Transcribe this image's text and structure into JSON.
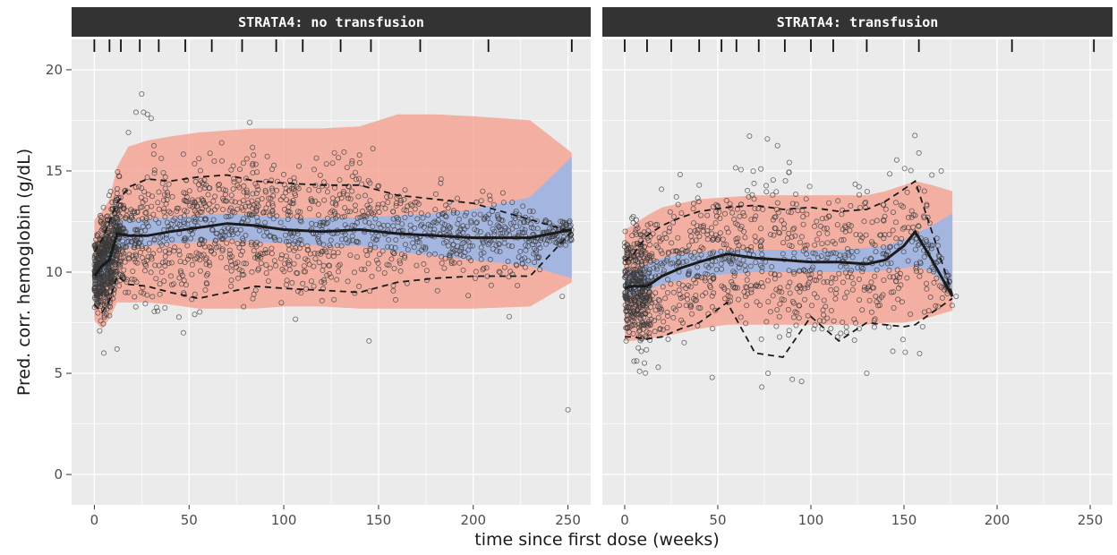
{
  "chart_data": {
    "type": "scatter",
    "xlabel": "time since first dose (weeks)",
    "ylabel": "Pred. corr. hemoglobin (g/dL)",
    "xlim": [
      -12,
      262
    ],
    "ylim": [
      -1.5,
      21.5
    ],
    "x_ticks": [
      0,
      50,
      100,
      150,
      200,
      250
    ],
    "y_ticks": [
      0,
      5,
      10,
      15,
      20
    ],
    "grid": true,
    "colors": {
      "panel_bg": "#ebebeb",
      "grid": "#ffffff",
      "strip_bg": "#333333",
      "pi_outer": "#f4a090",
      "pi_median": "#9bb6e6",
      "points": "#3a3a3a",
      "lines": "#1a1a1a"
    },
    "panels": [
      {
        "strip": "STRATA4: no transfusion",
        "rug_bins": [
          0,
          8,
          14,
          24,
          34,
          48,
          62,
          78,
          96,
          110,
          130,
          146,
          172,
          208,
          252
        ],
        "time": [
          0,
          4,
          8,
          12,
          18,
          28,
          40,
          55,
          70,
          85,
          100,
          120,
          140,
          160,
          180,
          200,
          230,
          252
        ],
        "observed": {
          "p05": [
            8.4,
            8.0,
            8.6,
            9.8,
            9.4,
            9.3,
            9.0,
            8.7,
            9.0,
            9.3,
            9.2,
            9.1,
            9.0,
            9.5,
            9.7,
            9.8,
            9.8,
            12.0
          ],
          "median": [
            9.8,
            10.3,
            10.6,
            11.9,
            11.8,
            11.8,
            12.0,
            12.2,
            12.4,
            12.3,
            12.1,
            12.0,
            12.1,
            11.9,
            11.8,
            11.7,
            11.7,
            12.1
          ],
          "p95": [
            11.0,
            11.6,
            12.5,
            13.4,
            14.2,
            14.6,
            14.5,
            14.7,
            14.8,
            14.5,
            14.4,
            14.3,
            14.3,
            13.8,
            13.6,
            13.4,
            12.6,
            12.0
          ]
        },
        "simulated_pi": {
          "p05_lo": [
            7.6,
            7.2,
            7.7,
            8.5,
            8.5,
            8.5,
            8.4,
            8.2,
            8.2,
            8.2,
            8.3,
            8.3,
            8.2,
            8.2,
            8.2,
            8.2,
            8.3,
            9.5
          ],
          "p95_hi": [
            12.6,
            13.0,
            13.6,
            15.2,
            16.2,
            16.5,
            16.7,
            16.9,
            17.0,
            17.1,
            17.1,
            17.1,
            17.2,
            17.8,
            17.8,
            17.7,
            17.5,
            15.9
          ],
          "median_lo": [
            9.3,
            9.5,
            10.0,
            11.2,
            11.2,
            11.3,
            11.4,
            11.5,
            11.6,
            11.5,
            11.4,
            11.3,
            11.3,
            11.0,
            10.8,
            10.6,
            10.3,
            9.7
          ],
          "median_hi": [
            10.4,
            10.8,
            11.2,
            12.6,
            12.6,
            12.6,
            12.7,
            12.8,
            12.9,
            12.8,
            12.7,
            12.7,
            12.7,
            12.8,
            12.9,
            13.1,
            13.7,
            15.7
          ]
        },
        "points": {
          "count": 1900,
          "outliers": [
            [
              25,
              18.8
            ],
            [
              22,
              17.9
            ],
            [
              26,
              17.9
            ],
            [
              28,
              17.8
            ],
            [
              30,
              17.6
            ],
            [
              18,
              16.9
            ],
            [
              82,
              17.4
            ],
            [
              250,
              3.2
            ],
            [
              5,
              6.0
            ],
            [
              12,
              6.2
            ],
            [
              47,
              7.0
            ],
            [
              145,
              6.6
            ],
            [
              219,
              7.8
            ],
            [
              247,
              8.8
            ],
            [
              183,
              14.6
            ],
            [
              205,
              14.0
            ]
          ]
        }
      },
      {
        "strip": "STRATA4: transfusion",
        "rug_bins": [
          0,
          12,
          25,
          40,
          52,
          60,
          72,
          86,
          100,
          112,
          130,
          158,
          208,
          252
        ],
        "time": [
          0,
          4,
          12,
          20,
          30,
          40,
          55,
          70,
          85,
          100,
          115,
          130,
          140,
          150,
          156,
          165,
          176
        ],
        "observed": {
          "p05": [
            6.8,
            6.8,
            6.7,
            6.8,
            7.2,
            7.5,
            8.5,
            6.0,
            5.8,
            7.8,
            6.6,
            7.5,
            7.4,
            7.3,
            7.4,
            8.0,
            8.7
          ],
          "median": [
            9.2,
            9.3,
            9.3,
            9.8,
            10.2,
            10.5,
            10.9,
            10.7,
            10.6,
            10.5,
            10.5,
            10.4,
            10.6,
            11.3,
            12.0,
            10.6,
            8.8
          ],
          "p95": [
            10.6,
            10.8,
            11.8,
            12.3,
            12.7,
            13.0,
            13.2,
            13.3,
            13.1,
            13.2,
            13.0,
            13.1,
            13.5,
            14.1,
            14.5,
            12.0,
            8.9
          ]
        },
        "simulated_pi": {
          "p05_lo": [
            6.6,
            6.6,
            6.7,
            6.8,
            7.0,
            7.2,
            7.4,
            7.4,
            7.4,
            7.4,
            7.4,
            7.4,
            7.5,
            7.5,
            7.6,
            7.8,
            8.1
          ],
          "p95_hi": [
            12.1,
            12.3,
            12.8,
            13.2,
            13.4,
            13.6,
            13.7,
            13.8,
            13.8,
            13.8,
            13.8,
            13.8,
            14.0,
            14.3,
            14.5,
            14.3,
            14.0
          ],
          "median_lo": [
            8.8,
            8.9,
            9.1,
            9.4,
            9.6,
            9.8,
            9.9,
            10.0,
            10.0,
            10.0,
            10.0,
            10.0,
            10.1,
            10.2,
            10.3,
            10.0,
            8.9
          ],
          "median_hi": [
            9.8,
            10.0,
            10.4,
            10.7,
            10.9,
            11.0,
            11.1,
            11.1,
            11.1,
            11.1,
            11.1,
            11.2,
            11.3,
            11.6,
            11.9,
            12.3,
            12.9
          ]
        },
        "points": {
          "count": 1200,
          "outliers": [
            [
              5,
              5.6
            ],
            [
              8,
              5.1
            ],
            [
              18,
              5.3
            ],
            [
              47,
              4.8
            ],
            [
              90,
              4.7
            ],
            [
              95,
              4.6
            ],
            [
              77,
              5.0
            ],
            [
              130,
              5.0
            ],
            [
              160,
              7.3
            ],
            [
              170,
              15.0
            ],
            [
              178,
              8.8
            ],
            [
              165,
              14.8
            ],
            [
              40,
              14.3
            ]
          ]
        }
      }
    ]
  }
}
